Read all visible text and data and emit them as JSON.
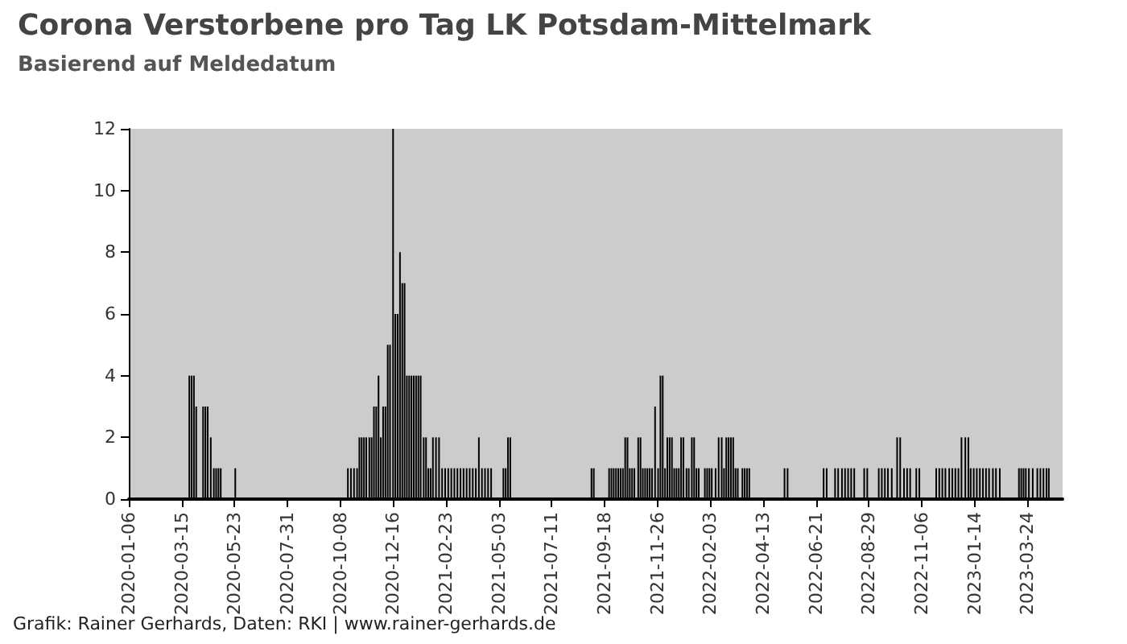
{
  "chart_data": {
    "type": "bar",
    "title": "Corona Verstorbene pro Tag LK Potsdam-Mittelmark",
    "subtitle": "Basierend auf Meldedatum",
    "annotations": [
      "Grafik: Rainer Gerhards, Daten: RKI | www.rainer-gerhards.de"
    ],
    "color": "#000000",
    "x": [
      "2020-03-25",
      "2020-03-28",
      "2020-03-31",
      "2020-04-03",
      "2020-04-12",
      "2020-04-15",
      "2020-04-18",
      "2020-04-22",
      "2020-04-26",
      "2020-04-29",
      "2020-05-02",
      "2020-05-05",
      "2020-05-24",
      "2020-10-18",
      "2020-10-22",
      "2020-10-26",
      "2020-10-30",
      "2020-11-02",
      "2020-11-05",
      "2020-11-08",
      "2020-11-11",
      "2020-11-15",
      "2020-11-18",
      "2020-11-21",
      "2020-11-24",
      "2020-11-27",
      "2020-11-30",
      "2020-12-03",
      "2020-12-06",
      "2020-12-09",
      "2020-12-12",
      "2020-12-16",
      "2020-12-19",
      "2020-12-22",
      "2020-12-25",
      "2020-12-28",
      "2020-12-31",
      "2021-01-03",
      "2021-01-06",
      "2021-01-09",
      "2021-01-12",
      "2021-01-15",
      "2021-01-18",
      "2021-01-21",
      "2021-01-25",
      "2021-01-28",
      "2021-01-31",
      "2021-02-03",
      "2021-02-06",
      "2021-02-10",
      "2021-02-14",
      "2021-02-18",
      "2021-02-22",
      "2021-02-26",
      "2021-03-02",
      "2021-03-06",
      "2021-03-10",
      "2021-03-14",
      "2021-03-18",
      "2021-03-22",
      "2021-03-26",
      "2021-03-30",
      "2021-04-03",
      "2021-04-07",
      "2021-04-11",
      "2021-04-15",
      "2021-04-19",
      "2021-04-23",
      "2021-05-09",
      "2021-05-12",
      "2021-05-15",
      "2021-05-18",
      "2021-09-01",
      "2021-09-04",
      "2021-09-24",
      "2021-09-27",
      "2021-09-30",
      "2021-10-03",
      "2021-10-06",
      "2021-10-09",
      "2021-10-12",
      "2021-10-15",
      "2021-10-18",
      "2021-10-21",
      "2021-10-24",
      "2021-10-27",
      "2021-11-01",
      "2021-11-04",
      "2021-11-07",
      "2021-11-10",
      "2021-11-13",
      "2021-11-16",
      "2021-11-19",
      "2021-11-23",
      "2021-11-27",
      "2021-11-30",
      "2021-12-03",
      "2021-12-06",
      "2021-12-09",
      "2021-12-12",
      "2021-12-15",
      "2021-12-18",
      "2021-12-21",
      "2021-12-24",
      "2021-12-27",
      "2021-12-30",
      "2022-01-03",
      "2022-01-06",
      "2022-01-10",
      "2022-01-13",
      "2022-01-16",
      "2022-01-19",
      "2022-01-27",
      "2022-01-30",
      "2022-02-02",
      "2022-02-05",
      "2022-02-10",
      "2022-02-14",
      "2022-02-18",
      "2022-02-21",
      "2022-02-24",
      "2022-02-27",
      "2022-03-02",
      "2022-03-05",
      "2022-03-08",
      "2022-03-11",
      "2022-03-17",
      "2022-03-20",
      "2022-03-23",
      "2022-03-26",
      "2022-05-11",
      "2022-05-15",
      "2022-07-01",
      "2022-07-05",
      "2022-07-16",
      "2022-07-20",
      "2022-07-25",
      "2022-07-29",
      "2022-08-02",
      "2022-08-06",
      "2022-08-10",
      "2022-08-23",
      "2022-08-27",
      "2022-09-11",
      "2022-09-15",
      "2022-09-19",
      "2022-09-23",
      "2022-09-28",
      "2022-10-05",
      "2022-10-09",
      "2022-10-14",
      "2022-10-18",
      "2022-10-22",
      "2022-10-30",
      "2022-11-03",
      "2022-11-25",
      "2022-11-29",
      "2022-12-03",
      "2022-12-07",
      "2022-12-12",
      "2022-12-16",
      "2022-12-20",
      "2022-12-24",
      "2022-12-28",
      "2023-01-02",
      "2023-01-06",
      "2023-01-09",
      "2023-01-13",
      "2023-01-17",
      "2023-01-21",
      "2023-01-25",
      "2023-01-29",
      "2023-02-02",
      "2023-02-07",
      "2023-02-11",
      "2023-02-16",
      "2023-03-13",
      "2023-03-16",
      "2023-03-19",
      "2023-03-22",
      "2023-03-26",
      "2023-03-31",
      "2023-04-06",
      "2023-04-10",
      "2023-04-14",
      "2023-04-18",
      "2023-04-21"
    ],
    "values": [
      4,
      4,
      4,
      3,
      3,
      3,
      3,
      2,
      1,
      1,
      1,
      1,
      1,
      1,
      1,
      1,
      1,
      2,
      2,
      2,
      2,
      2,
      2,
      3,
      3,
      4,
      2,
      3,
      3,
      5,
      5,
      12,
      6,
      6,
      8,
      7,
      7,
      4,
      4,
      4,
      4,
      4,
      4,
      4,
      2,
      2,
      1,
      1,
      2,
      2,
      2,
      1,
      1,
      1,
      1,
      1,
      1,
      1,
      1,
      1,
      1,
      1,
      1,
      2,
      1,
      1,
      1,
      1,
      1,
      1,
      2,
      2,
      1,
      1,
      1,
      1,
      1,
      1,
      1,
      1,
      1,
      2,
      2,
      1,
      1,
      1,
      2,
      2,
      1,
      1,
      1,
      1,
      1,
      3,
      1,
      4,
      4,
      1,
      2,
      2,
      2,
      1,
      1,
      1,
      2,
      2,
      1,
      1,
      2,
      2,
      1,
      1,
      1,
      1,
      1,
      1,
      1,
      2,
      2,
      1,
      2,
      2,
      2,
      2,
      1,
      1,
      1,
      1,
      1,
      1,
      1,
      1,
      1,
      1,
      1,
      1,
      1,
      1,
      1,
      1,
      1,
      1,
      1,
      1,
      1,
      1,
      1,
      1,
      2,
      2,
      1,
      1,
      1,
      1,
      1,
      1,
      1,
      1,
      1,
      1,
      1,
      1,
      1,
      2,
      2,
      2,
      1,
      1,
      1,
      1,
      1,
      1,
      1,
      1,
      1,
      1,
      1,
      1,
      1,
      1,
      1,
      1,
      1,
      1,
      1,
      1,
      1
    ],
    "xlim": [
      "2020-01-06",
      "2023-05-09"
    ],
    "xticks": [
      "2020-01-06",
      "2020-03-15",
      "2020-05-23",
      "2020-07-31",
      "2020-10-08",
      "2020-12-16",
      "2021-02-23",
      "2021-05-03",
      "2021-07-11",
      "2021-09-18",
      "2021-11-26",
      "2022-02-03",
      "2022-04-13",
      "2022-06-21",
      "2022-08-29",
      "2022-11-06",
      "2023-01-14",
      "2023-03-24"
    ],
    "ylim": [
      0,
      12
    ],
    "yticks": [
      0,
      2,
      4,
      6,
      8,
      10,
      12
    ]
  }
}
